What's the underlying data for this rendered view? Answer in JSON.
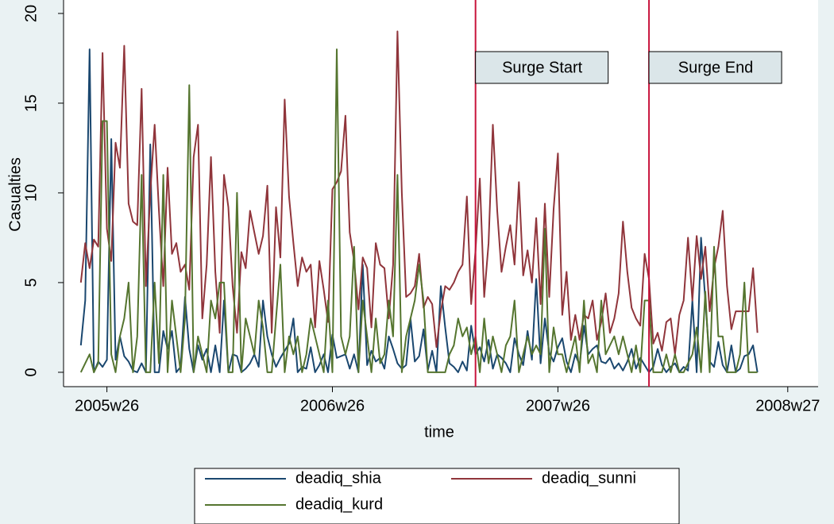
{
  "chart_data": {
    "type": "line",
    "xlabel": "time",
    "ylabel": "Casualties",
    "xlim": [
      2355,
      2529
    ],
    "ylim": [
      -0.8,
      20.75
    ],
    "xticks": [
      {
        "value": 2365,
        "label": "2005w26"
      },
      {
        "value": 2417,
        "label": "2006w26"
      },
      {
        "value": 2469,
        "label": "2007w26"
      },
      {
        "value": 2522,
        "label": "2008w27"
      }
    ],
    "yticks": [
      0,
      5,
      10,
      15,
      20
    ],
    "annotation_color": "#c8143c",
    "annotations": [
      {
        "x": 2450,
        "label": "Surge Start"
      },
      {
        "x": 2490,
        "label": "Surge End"
      }
    ],
    "x": [
      2359,
      2360,
      2361,
      2362,
      2363,
      2364,
      2365,
      2366,
      2367,
      2368,
      2369,
      2370,
      2371,
      2372,
      2373,
      2374,
      2375,
      2376,
      2377,
      2378,
      2379,
      2380,
      2381,
      2382,
      2383,
      2384,
      2385,
      2386,
      2387,
      2388,
      2389,
      2390,
      2391,
      2392,
      2393,
      2394,
      2395,
      2396,
      2397,
      2398,
      2399,
      2400,
      2401,
      2402,
      2403,
      2404,
      2405,
      2406,
      2407,
      2408,
      2409,
      2410,
      2411,
      2412,
      2413,
      2414,
      2415,
      2416,
      2417,
      2418,
      2419,
      2420,
      2421,
      2422,
      2423,
      2424,
      2425,
      2426,
      2427,
      2428,
      2429,
      2430,
      2431,
      2432,
      2433,
      2434,
      2435,
      2436,
      2437,
      2438,
      2439,
      2440,
      2441,
      2442,
      2443,
      2444,
      2445,
      2446,
      2447,
      2448,
      2449,
      2450,
      2451,
      2452,
      2453,
      2454,
      2455,
      2456,
      2457,
      2458,
      2459,
      2460,
      2461,
      2462,
      2463,
      2464,
      2465,
      2466,
      2467,
      2468,
      2469,
      2470,
      2471,
      2472,
      2473,
      2474,
      2475,
      2476,
      2477,
      2478,
      2479,
      2480,
      2481,
      2482,
      2483,
      2484,
      2485,
      2486,
      2487,
      2488,
      2489,
      2490,
      2491,
      2492,
      2493,
      2494,
      2495,
      2496,
      2497,
      2498,
      2499,
      2500,
      2501,
      2502,
      2503,
      2504,
      2505,
      2506,
      2507,
      2508,
      2509,
      2510,
      2511,
      2512,
      2513,
      2514,
      2515
    ],
    "series": [
      {
        "name": "deadiq_shia",
        "color": "#1a476f",
        "values": [
          1.5,
          4,
          18,
          0,
          0.6,
          0.3,
          0.7,
          13,
          0.7,
          2,
          0.9,
          0.6,
          0.1,
          0,
          0.5,
          0,
          12.7,
          0,
          0,
          2.3,
          1.3,
          2.3,
          0,
          0.3,
          4.2,
          1.3,
          0,
          1.5,
          0.7,
          1.3,
          0,
          1.5,
          0,
          4,
          0,
          1,
          0.9,
          0,
          0.2,
          0.5,
          1,
          0.3,
          4,
          2,
          1,
          0.3,
          0.8,
          1.2,
          1.6,
          3,
          0,
          0.3,
          0.2,
          1.4,
          0,
          0.4,
          1,
          0,
          2.1,
          0.8,
          0.9,
          1,
          0.2,
          1,
          0,
          6,
          0.4,
          1.2,
          0.6,
          0.8,
          0.2,
          2,
          1.3,
          0.5,
          0.2,
          0.4,
          3,
          0.6,
          0.9,
          2.4,
          0.1,
          1.2,
          0,
          4.8,
          2.5,
          0.5,
          0.3,
          0,
          0.6,
          0.1,
          2.6,
          1,
          1.4,
          0.6,
          1.8,
          0.2,
          1,
          0.8,
          0.5,
          0,
          1.9,
          1,
          0.4,
          2.3,
          0.7,
          5.2,
          0.5,
          3,
          1.1,
          0.6,
          1.4,
          1.9,
          0.6,
          0,
          1,
          0.4,
          2.6,
          1,
          1.3,
          1.5,
          0.6,
          0.5,
          0.8,
          0.2,
          0.5,
          0.1,
          0.6,
          1.3,
          0.2,
          0.8,
          0.4,
          0,
          0.3,
          1.3,
          0.4,
          0,
          0.3,
          0.5,
          0,
          0.3,
          0.1,
          4,
          0,
          7.5,
          4,
          0.6,
          0.3,
          1.7,
          0.4,
          0,
          1.5,
          0,
          0.2,
          0.9,
          1,
          1.5,
          0
        ]
      },
      {
        "name": "deadiq_sunni",
        "color": "#90353b",
        "values": [
          5,
          7.2,
          5.8,
          7.4,
          7,
          17.8,
          8,
          6.2,
          12.8,
          11.4,
          18.2,
          9.4,
          8.4,
          8.2,
          15.8,
          4.8,
          10,
          13.8,
          9,
          4.8,
          11.4,
          6.6,
          7.2,
          5.6,
          6,
          4.6,
          12,
          13.8,
          3,
          6,
          12,
          5.6,
          2.2,
          11,
          9.2,
          4.8,
          2.2,
          6.7,
          5.8,
          9,
          7.8,
          6.6,
          7.6,
          10.4,
          2.2,
          9.2,
          6.4,
          15.2,
          9.8,
          7.2,
          4.8,
          6.4,
          5.6,
          6,
          2.5,
          6.2,
          4.6,
          2.8,
          10.2,
          10.6,
          11.2,
          14.3,
          7.8,
          6.2,
          3.5,
          6.4,
          5.8,
          2.5,
          7.2,
          6,
          5.8,
          3,
          6,
          19,
          10,
          4.2,
          4.4,
          4.8,
          6.6,
          3.6,
          4.2,
          3.8,
          1.4,
          3.4,
          4.8,
          4.6,
          5,
          5.6,
          6,
          9.8,
          3.8,
          6.8,
          10.8,
          4.2,
          7.2,
          13.8,
          9,
          5.6,
          7,
          8.2,
          6,
          10.6,
          5.4,
          6.8,
          5,
          8.6,
          3.8,
          9.4,
          4.2,
          9.1,
          12.2,
          3.2,
          5.6,
          1.8,
          3.2,
          1.8,
          3.2,
          3,
          4,
          1.8,
          2.8,
          4.4,
          2.2,
          3,
          4.4,
          8.4,
          5.6,
          3.6,
          3,
          2.6,
          6.6,
          5.2,
          1.6,
          2.2,
          1.2,
          2.8,
          3,
          1,
          3.2,
          4,
          7.5,
          4,
          7.6,
          5.2,
          7,
          3.4,
          5.8,
          7,
          9,
          4.8,
          2.4,
          3.4,
          3.4,
          3.4,
          3.4,
          5.8,
          2.2
        ]
      },
      {
        "name": "deadiq_kurd",
        "color": "#55752f",
        "values": [
          0,
          0.5,
          1,
          0,
          0.5,
          14,
          14,
          1,
          0,
          2,
          3,
          5,
          0,
          2,
          11,
          0,
          0,
          5,
          0.5,
          11,
          0,
          4,
          2,
          0,
          3,
          16,
          0,
          2,
          1,
          0,
          4,
          3,
          5,
          5,
          0,
          0,
          10,
          0,
          3,
          2,
          1,
          4,
          2.5,
          0,
          0,
          3,
          6,
          0,
          2,
          1,
          2,
          0,
          1,
          3,
          2,
          1,
          0,
          4,
          0,
          18,
          2,
          1,
          2,
          7,
          0,
          4,
          2,
          0,
          3,
          0.5,
          1,
          4,
          2,
          11,
          0,
          2,
          3,
          4,
          6,
          4,
          0,
          0,
          0,
          0,
          0,
          1,
          1.5,
          3,
          2,
          2.5,
          1,
          2,
          0,
          3,
          0.5,
          2,
          1,
          0,
          1.5,
          2,
          4,
          0,
          1,
          2,
          1,
          1.5,
          1,
          8,
          0,
          2.5,
          1,
          1,
          0,
          1,
          2,
          0,
          4,
          0.5,
          1,
          0,
          4,
          1,
          1.5,
          2,
          1,
          2,
          1,
          0,
          1.5,
          0,
          4,
          4,
          0,
          0,
          0,
          1,
          0,
          1,
          0,
          0,
          0.5,
          1,
          2.5,
          0,
          4.5,
          0,
          7,
          2,
          2,
          0,
          0,
          0,
          1,
          5,
          0,
          0,
          0
        ]
      }
    ]
  }
}
